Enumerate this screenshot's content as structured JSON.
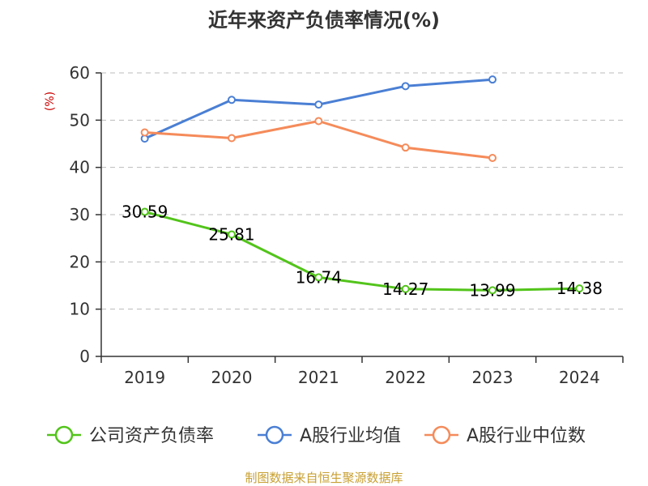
{
  "colors": {
    "company": "#52c41a",
    "industry_avg": "#4a7fd4",
    "industry_median": "#f58b5a",
    "ylabel": "#cc0000",
    "source": "#c8a032",
    "grid": "#bbbbbb",
    "axis": "#333333"
  },
  "chart_data": {
    "type": "line",
    "title": "近年来资产负债率情况(%)",
    "xlabel": "",
    "ylabel": "(%)",
    "categories": [
      "2019",
      "2020",
      "2021",
      "2022",
      "2023",
      "2024"
    ],
    "ylim": [
      0,
      60
    ],
    "yticks": [
      0,
      10,
      20,
      30,
      40,
      50,
      60
    ],
    "grid": true,
    "legend_position": "bottom",
    "series": [
      {
        "name": "公司资产负债率",
        "color_key": "company",
        "values": [
          30.59,
          25.81,
          16.74,
          14.27,
          13.99,
          14.38
        ],
        "labels": [
          "30.59",
          "25.81",
          "16.74",
          "14.27",
          "13.99",
          "14.38"
        ],
        "show_labels": true
      },
      {
        "name": "A股行业均值",
        "color_key": "industry_avg",
        "values": [
          46.1,
          54.3,
          53.3,
          57.2,
          58.6,
          null
        ],
        "show_labels": false
      },
      {
        "name": "A股行业中位数",
        "color_key": "industry_median",
        "values": [
          47.4,
          46.2,
          49.8,
          44.2,
          42.0,
          null
        ],
        "show_labels": false
      }
    ]
  },
  "source": "制图数据来自恒生聚源数据库"
}
